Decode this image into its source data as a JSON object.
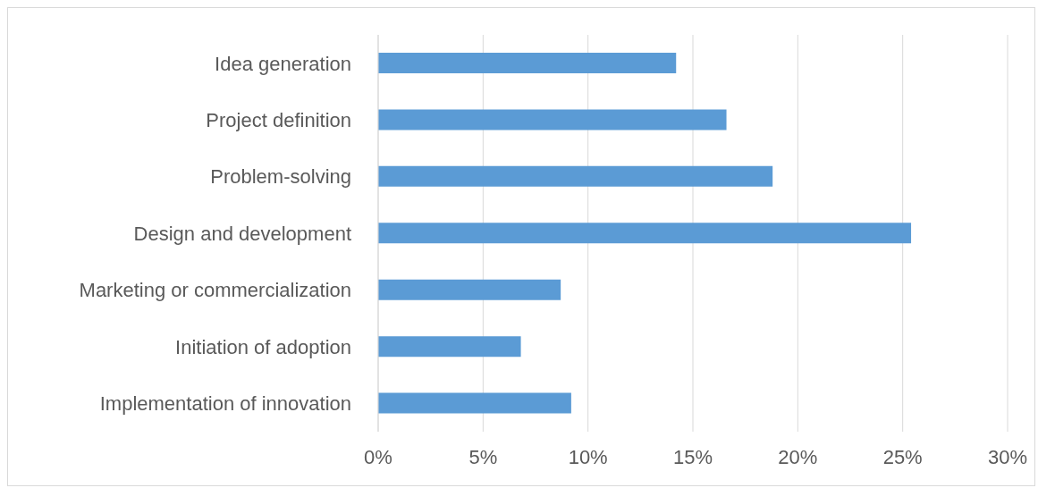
{
  "chart_data": {
    "type": "bar",
    "orientation": "horizontal",
    "categories": [
      "Idea generation",
      "Project definition",
      "Problem-solving",
      "Design and development",
      "Marketing or commercialization",
      "Initiation of adoption",
      "Implementation of innovation"
    ],
    "values": [
      14.2,
      16.6,
      18.8,
      25.4,
      8.7,
      6.8,
      9.2
    ],
    "color": "#5b9bd5",
    "xlim": [
      0,
      30
    ],
    "xticks": [
      {
        "value": 0,
        "label": "0%"
      },
      {
        "value": 5,
        "label": "5%"
      },
      {
        "value": 10,
        "label": "10%"
      },
      {
        "value": 15,
        "label": "15%"
      },
      {
        "value": 20,
        "label": "20%"
      },
      {
        "value": 25,
        "label": "25%"
      },
      {
        "value": 30,
        "label": "30%"
      }
    ],
    "grid": "x"
  }
}
